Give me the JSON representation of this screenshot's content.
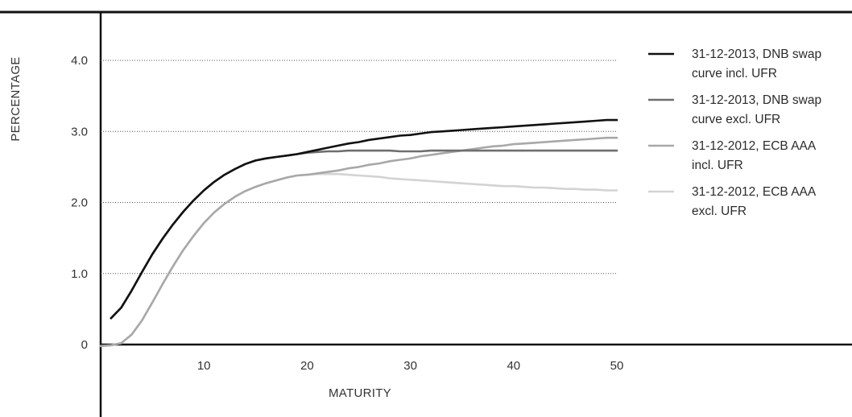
{
  "chart_data": {
    "type": "line",
    "title": "",
    "xlabel": "MATURITY",
    "ylabel": "PERCENTAGE",
    "xlim": [
      0,
      50
    ],
    "ylim": [
      0,
      4.0
    ],
    "x_ticks": [
      {
        "value": 10,
        "label": "10"
      },
      {
        "value": 20,
        "label": "20"
      },
      {
        "value": 30,
        "label": "30"
      },
      {
        "value": 40,
        "label": "40"
      },
      {
        "value": 50,
        "label": "50"
      }
    ],
    "y_ticks": [
      {
        "value": 0,
        "label": "0"
      },
      {
        "value": 1,
        "label": "1.0"
      },
      {
        "value": 2,
        "label": "2.0"
      },
      {
        "value": 3,
        "label": "3.0"
      },
      {
        "value": 4,
        "label": "4.0"
      }
    ],
    "grid": "horizontal dotted",
    "legend_position": "right",
    "series": [
      {
        "name": "31-12-2013, DNB swap curve incl. UFR",
        "legend_lines": [
          "31-12-2013, DNB swap",
          "curve incl. UFR"
        ],
        "color": "#111111",
        "x": [
          1,
          2,
          3,
          4,
          5,
          6,
          7,
          8,
          9,
          10,
          11,
          12,
          13,
          14,
          15,
          16,
          17,
          18,
          19,
          20,
          21,
          22,
          23,
          24,
          25,
          26,
          27,
          28,
          29,
          30,
          31,
          32,
          33,
          34,
          35,
          36,
          37,
          38,
          39,
          40,
          41,
          42,
          43,
          44,
          45,
          46,
          47,
          48,
          49,
          50
        ],
        "y": [
          0.37,
          0.52,
          0.76,
          1.02,
          1.27,
          1.49,
          1.69,
          1.87,
          2.03,
          2.17,
          2.29,
          2.39,
          2.47,
          2.54,
          2.59,
          2.62,
          2.64,
          2.66,
          2.68,
          2.71,
          2.74,
          2.77,
          2.8,
          2.83,
          2.85,
          2.88,
          2.9,
          2.92,
          2.94,
          2.95,
          2.97,
          2.99,
          3.0,
          3.01,
          3.02,
          3.03,
          3.04,
          3.05,
          3.06,
          3.07,
          3.08,
          3.09,
          3.1,
          3.11,
          3.12,
          3.13,
          3.14,
          3.15,
          3.16,
          3.16
        ]
      },
      {
        "name": "31-12-2013, DNB swap curve excl. UFR",
        "legend_lines": [
          "31-12-2013, DNB swap",
          "curve excl. UFR"
        ],
        "color": "#6e6e6e",
        "x": [
          1,
          2,
          3,
          4,
          5,
          6,
          7,
          8,
          9,
          10,
          11,
          12,
          13,
          14,
          15,
          16,
          17,
          18,
          19,
          20,
          21,
          22,
          23,
          24,
          25,
          26,
          27,
          28,
          29,
          30,
          31,
          32,
          33,
          34,
          35,
          36,
          37,
          38,
          39,
          40,
          41,
          42,
          43,
          44,
          45,
          46,
          47,
          48,
          49,
          50
        ],
        "y": [
          0.37,
          0.52,
          0.76,
          1.02,
          1.27,
          1.49,
          1.69,
          1.87,
          2.03,
          2.17,
          2.29,
          2.39,
          2.47,
          2.54,
          2.59,
          2.62,
          2.64,
          2.66,
          2.68,
          2.7,
          2.71,
          2.72,
          2.72,
          2.73,
          2.73,
          2.73,
          2.73,
          2.73,
          2.72,
          2.72,
          2.72,
          2.73,
          2.73,
          2.73,
          2.73,
          2.73,
          2.73,
          2.73,
          2.73,
          2.73,
          2.73,
          2.73,
          2.73,
          2.73,
          2.73,
          2.73,
          2.73,
          2.73,
          2.73,
          2.73
        ]
      },
      {
        "name": "31-12-2012, ECB AAA incl. UFR",
        "legend_lines": [
          "31-12-2012, ECB AAA",
          "incl. UFR"
        ],
        "color": "#a8a8a8",
        "x": [
          0,
          1,
          2,
          3,
          4,
          5,
          6,
          7,
          8,
          9,
          10,
          11,
          12,
          13,
          14,
          15,
          16,
          17,
          18,
          19,
          20,
          21,
          22,
          23,
          24,
          25,
          26,
          27,
          28,
          29,
          30,
          31,
          32,
          33,
          34,
          35,
          36,
          37,
          38,
          39,
          40,
          41,
          42,
          43,
          44,
          45,
          46,
          47,
          48,
          49,
          50
        ],
        "y": [
          -0.02,
          -0.01,
          0.02,
          0.14,
          0.34,
          0.59,
          0.85,
          1.1,
          1.33,
          1.53,
          1.71,
          1.86,
          1.98,
          2.08,
          2.16,
          2.22,
          2.27,
          2.31,
          2.35,
          2.38,
          2.39,
          2.41,
          2.43,
          2.45,
          2.48,
          2.5,
          2.53,
          2.55,
          2.58,
          2.6,
          2.62,
          2.65,
          2.67,
          2.69,
          2.71,
          2.73,
          2.75,
          2.77,
          2.79,
          2.8,
          2.82,
          2.83,
          2.84,
          2.85,
          2.86,
          2.87,
          2.88,
          2.89,
          2.9,
          2.91,
          2.91
        ]
      },
      {
        "name": "31-12-2012, ECB AAA excl. UFR",
        "legend_lines": [
          "31-12-2012, ECB AAA",
          "excl. UFR"
        ],
        "color": "#d3d3d3",
        "x": [
          0,
          1,
          2,
          3,
          4,
          5,
          6,
          7,
          8,
          9,
          10,
          11,
          12,
          13,
          14,
          15,
          16,
          17,
          18,
          19,
          20,
          21,
          22,
          23,
          24,
          25,
          26,
          27,
          28,
          29,
          30,
          31,
          32,
          33,
          34,
          35,
          36,
          37,
          38,
          39,
          40,
          41,
          42,
          43,
          44,
          45,
          46,
          47,
          48,
          49,
          50
        ],
        "y": [
          -0.02,
          -0.01,
          0.02,
          0.14,
          0.34,
          0.59,
          0.85,
          1.1,
          1.33,
          1.53,
          1.71,
          1.86,
          1.98,
          2.08,
          2.16,
          2.22,
          2.27,
          2.31,
          2.35,
          2.38,
          2.39,
          2.4,
          2.4,
          2.4,
          2.39,
          2.38,
          2.37,
          2.36,
          2.34,
          2.33,
          2.32,
          2.31,
          2.3,
          2.29,
          2.28,
          2.27,
          2.26,
          2.25,
          2.24,
          2.23,
          2.23,
          2.22,
          2.21,
          2.21,
          2.2,
          2.19,
          2.19,
          2.18,
          2.18,
          2.17,
          2.17
        ]
      }
    ]
  }
}
